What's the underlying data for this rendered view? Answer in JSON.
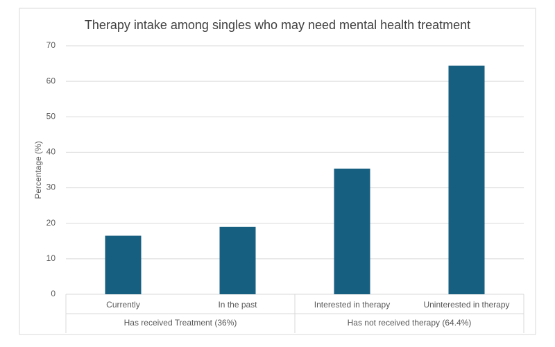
{
  "chart_data": {
    "type": "bar",
    "title": "Therapy intake among singles who may need mental health treatment",
    "y_label": "Percentage (%)",
    "categories": [
      "Currently",
      "In the past",
      "Interested in therapy",
      "Uninterested in therapy"
    ],
    "values": [
      16.5,
      19.0,
      35.4,
      64.4
    ],
    "groups": [
      {
        "name": "Has received Treatment (36%)",
        "size": 2
      },
      {
        "name": "Has not received therapy (64.4%)",
        "size": 2
      }
    ],
    "color": "#175f80",
    "ylim": [
      0,
      70
    ],
    "yticks": [
      0,
      10,
      20,
      30,
      40,
      50,
      60,
      70
    ],
    "grid": true
  }
}
